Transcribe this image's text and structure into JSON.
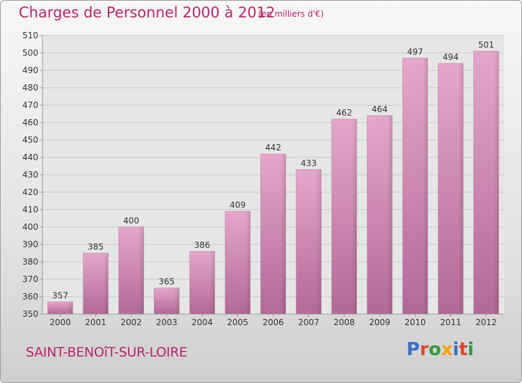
{
  "title": "Charges de Personnel 2000 à 2012",
  "subtitle": "(en milliers d'€)",
  "place": "SAINT-BENOîT-SUR-LOIRE",
  "brand": {
    "text": "Proxiti",
    "letter_colors": [
      "#3b6fc4",
      "#e0452b",
      "#2d9b3a",
      "#f2a20d",
      "#3b6fc4",
      "#e0452b",
      "#2d9b3a"
    ]
  },
  "colors": {
    "bar": "#d98fbb",
    "bar_dark": "#a9628e",
    "accent": "#b8266a"
  },
  "chart_data": {
    "type": "bar",
    "title": "Charges de Personnel 2000 à 2012",
    "subtitle": "(en milliers d'€)",
    "categories": [
      "2000",
      "2001",
      "2002",
      "2003",
      "2004",
      "2005",
      "2006",
      "2007",
      "2008",
      "2009",
      "2010",
      "2011",
      "2012"
    ],
    "values": [
      357,
      385,
      400,
      365,
      386,
      409,
      442,
      433,
      462,
      464,
      497,
      494,
      501
    ],
    "ylim": [
      350,
      510
    ],
    "yticks": [
      350,
      360,
      370,
      380,
      390,
      400,
      410,
      420,
      430,
      440,
      450,
      460,
      470,
      480,
      490,
      500,
      510
    ],
    "grid": true,
    "legend": "none"
  }
}
